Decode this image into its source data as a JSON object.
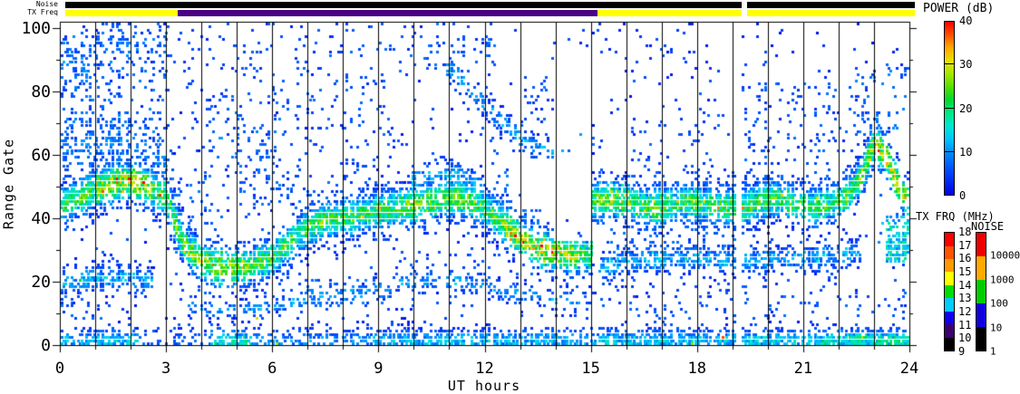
{
  "top_strip": {
    "noise_label": "Noise",
    "tx_freq_label": "TX Freq",
    "noise_segments": [
      {
        "hours": [
          0,
          19.12
        ],
        "color": "#000000"
      },
      {
        "hours": [
          19.27,
          24
        ],
        "color": "#000000"
      }
    ],
    "tx_freq_segments": [
      {
        "hours": [
          0,
          3.17
        ],
        "color": "#ffff00"
      },
      {
        "hours": [
          3.17,
          15.03
        ],
        "color": "#4a0082"
      },
      {
        "hours": [
          15.03,
          19.12
        ],
        "color": "#ffff00"
      },
      {
        "hours": [
          19.27,
          24
        ],
        "color": "#ffff00"
      }
    ]
  },
  "colorbars": {
    "power": {
      "title": "POWER (dB)",
      "tick_labels": [
        "40",
        "30",
        "20",
        "10",
        "0"
      ],
      "tick_values": [
        40,
        30,
        20,
        10,
        0
      ],
      "divider_values": [
        10,
        20,
        30
      ],
      "range": [
        0,
        40
      ]
    },
    "tx_frq": {
      "title": "TX FRQ (MHz)",
      "tick_labels": [
        "18",
        "17",
        "16",
        "15",
        "14",
        "13",
        "12",
        "11",
        "10",
        "9"
      ],
      "segment_colors_bottom_to_top": [
        "#000000",
        "#3d0070",
        "#1100ee",
        "#00ccff",
        "#00dd00",
        "#ffff00",
        "#ff9900",
        "#ff5500",
        "#ff0000"
      ]
    },
    "noise": {
      "title": "NOISE",
      "tick_labels_bottom_to_top": [
        "1",
        "10",
        "100",
        "1000",
        "10000"
      ],
      "segment_colors_bottom_to_top": [
        "#000000",
        "#1100dd",
        "#00cc00",
        "#ffaa00",
        "#ee0000"
      ]
    }
  },
  "chart_data": {
    "type": "heatmap",
    "title": "",
    "xlabel": "UT hours",
    "ylabel": "Range Gate",
    "xlim": [
      0,
      24
    ],
    "ylim": [
      0,
      102
    ],
    "x_major_ticks": [
      "0",
      "3",
      "6",
      "9",
      "12",
      "15",
      "18",
      "21",
      "24"
    ],
    "x_major_tick_values": [
      0,
      3,
      6,
      9,
      12,
      15,
      18,
      21,
      24
    ],
    "x_minor_step": 1,
    "y_major_ticks": [
      "100",
      "80",
      "60",
      "40",
      "20",
      "0"
    ],
    "y_major_tick_values": [
      100,
      80,
      60,
      40,
      20,
      0
    ],
    "y_minor_step": 10,
    "hour_gridline_step": 1,
    "data_gap_hours": [
      [
        19.12,
        19.27
      ]
    ],
    "power_range_db": [
      0,
      40
    ],
    "seed": 1337,
    "colormap_stops": [
      [
        0,
        "#0000e6"
      ],
      [
        6,
        "#0050ff"
      ],
      [
        10,
        "#0090ff"
      ],
      [
        13,
        "#00c8ff"
      ],
      [
        16,
        "#00e8d0"
      ],
      [
        19,
        "#00e880"
      ],
      [
        22,
        "#00d830"
      ],
      [
        25,
        "#58e000"
      ],
      [
        28,
        "#a8e800"
      ],
      [
        31,
        "#e8e000"
      ],
      [
        34,
        "#ffa800"
      ],
      [
        37,
        "#ff5000"
      ],
      [
        40,
        "#ff0000"
      ]
    ],
    "bands": [
      {
        "name": "main-echo-band",
        "sigma": 4.2,
        "density": 0.8,
        "peak": 24,
        "path": [
          [
            0,
            44
          ],
          [
            0.5,
            46
          ],
          [
            1,
            49
          ],
          [
            1.6,
            51
          ],
          [
            2.1,
            51
          ],
          [
            2.6,
            49
          ],
          [
            3.0,
            46
          ],
          [
            3.2,
            40
          ],
          [
            3.5,
            31
          ],
          [
            4,
            26
          ],
          [
            4.6,
            24
          ],
          [
            5.2,
            24
          ],
          [
            5.8,
            26
          ],
          [
            6.3,
            30
          ],
          [
            6.9,
            36
          ],
          [
            7.5,
            39
          ],
          [
            8.2,
            40
          ],
          [
            9,
            42
          ],
          [
            9.6,
            43
          ],
          [
            10.2,
            44
          ],
          [
            10.8,
            46
          ],
          [
            11.3,
            46
          ],
          [
            11.8,
            44
          ],
          [
            12.2,
            41
          ],
          [
            12.6,
            37
          ],
          [
            13,
            33
          ],
          [
            13.5,
            30
          ],
          [
            14,
            29
          ],
          [
            14.5,
            28
          ],
          [
            15.0,
            28
          ],
          [
            15.05,
            45
          ],
          [
            15.5,
            46
          ],
          [
            16,
            45
          ],
          [
            16.5,
            43
          ],
          [
            17,
            43
          ],
          [
            17.6,
            45
          ],
          [
            18.2,
            44
          ],
          [
            18.7,
            43
          ],
          [
            19.1,
            43
          ],
          [
            19.3,
            43
          ],
          [
            19.8,
            45
          ],
          [
            20.3,
            46
          ],
          [
            20.8,
            44
          ],
          [
            21.3,
            43
          ],
          [
            21.8,
            44
          ],
          [
            22.2,
            46
          ],
          [
            22.6,
            52
          ],
          [
            23.0,
            63
          ],
          [
            23.3,
            60
          ],
          [
            23.6,
            52
          ],
          [
            24,
            44
          ]
        ],
        "hot": [
          {
            "hours": [
              1.0,
              2.6
            ],
            "peak": 31
          },
          {
            "hours": [
              3.5,
              5.3
            ],
            "peak": 29
          },
          {
            "hours": [
              9.8,
              11.8
            ],
            "peak": 27
          },
          {
            "hours": [
              12.6,
              14.6
            ],
            "peak": 31
          },
          {
            "hours": [
              15.05,
              16.2
            ],
            "peak": 27
          },
          {
            "hours": [
              22.6,
              24
            ],
            "peak": 30
          }
        ]
      },
      {
        "name": "near-band-early",
        "sigma": 2.8,
        "density": 0.55,
        "peak": 13,
        "path": [
          [
            0,
            19
          ],
          [
            0.6,
            20
          ],
          [
            1.2,
            21
          ],
          [
            2,
            21
          ],
          [
            2.6,
            19
          ]
        ],
        "hot": []
      },
      {
        "name": "near-band-morning",
        "sigma": 2.2,
        "density": 0.3,
        "peak": 11,
        "path": [
          [
            3.6,
            12
          ],
          [
            4.5,
            11
          ],
          [
            5.5,
            11
          ],
          [
            6.5,
            13
          ],
          [
            7.5,
            15
          ],
          [
            8.5,
            16
          ],
          [
            9.4,
            17
          ]
        ],
        "hot": []
      },
      {
        "name": "near-band-midday",
        "sigma": 2.2,
        "density": 0.3,
        "peak": 11,
        "path": [
          [
            9.4,
            19
          ],
          [
            10.3,
            20
          ],
          [
            11.2,
            20
          ],
          [
            12,
            18
          ],
          [
            13,
            16
          ],
          [
            14,
            14
          ],
          [
            14.9,
            13
          ]
        ],
        "hot": []
      },
      {
        "name": "near-band-evening",
        "sigma": 2.8,
        "density": 0.5,
        "peak": 13,
        "path": [
          [
            15.2,
            24
          ],
          [
            16,
            26
          ],
          [
            17,
            27
          ],
          [
            18,
            27
          ],
          [
            19.1,
            26
          ],
          [
            19.3,
            26
          ],
          [
            20,
            27
          ],
          [
            21,
            27
          ],
          [
            22,
            28
          ],
          [
            22.7,
            29
          ],
          [
            23.3,
            31
          ],
          [
            24,
            31
          ]
        ],
        "hot": []
      },
      {
        "name": "upper-descending-streak",
        "sigma": 2.6,
        "density": 0.4,
        "peak": 12,
        "path": [
          [
            10.9,
            88
          ],
          [
            11.6,
            80
          ],
          [
            12.3,
            72
          ],
          [
            13,
            65
          ],
          [
            13.6,
            61
          ],
          [
            14.2,
            62
          ],
          [
            14.8,
            66
          ],
          [
            15.2,
            63
          ]
        ],
        "hot": []
      },
      {
        "name": "early-upper-shoulder",
        "sigma": 4.5,
        "density": 0.22,
        "peak": 9,
        "path": [
          [
            0,
            61
          ],
          [
            0.8,
            63
          ],
          [
            1.6,
            65
          ],
          [
            2.4,
            62
          ],
          [
            3,
            57
          ]
        ],
        "hot": []
      },
      {
        "name": "topleft-patch",
        "sigma": 4,
        "density": 0.3,
        "peak": 9,
        "path": [
          [
            0,
            88
          ],
          [
            0.4,
            90
          ],
          [
            0.9,
            86
          ]
        ],
        "hot": []
      },
      {
        "name": "mid-left-scatter-arc",
        "sigma": 5,
        "density": 0.12,
        "peak": 8,
        "path": [
          [
            4.2,
            66
          ],
          [
            5,
            61
          ],
          [
            5.8,
            57
          ],
          [
            6.3,
            54
          ]
        ],
        "hot": []
      },
      {
        "name": "late-morning-upper-ext",
        "sigma": 2.8,
        "density": 0.35,
        "peak": 13,
        "path": [
          [
            9.9,
            51
          ],
          [
            10.6,
            54
          ],
          [
            11.3,
            53
          ],
          [
            11.9,
            50
          ]
        ],
        "hot": []
      }
    ],
    "scatter_regions": [
      {
        "hours": [
          0,
          3.2
        ],
        "gates": [
          52,
          97
        ],
        "density": 0.09,
        "power": [
          2,
          10
        ]
      },
      {
        "hours": [
          0.6,
          3.1
        ],
        "gates": [
          92,
          102
        ],
        "density": 0.13,
        "power": [
          2,
          9
        ]
      },
      {
        "hours": [
          3.1,
          4.3
        ],
        "gates": [
          28,
          52
        ],
        "density": 0.07,
        "power": [
          2,
          9
        ]
      },
      {
        "hours": [
          4.0,
          6.4
        ],
        "gates": [
          40,
          80
        ],
        "density": 0.05,
        "power": [
          1,
          9
        ]
      },
      {
        "hours": [
          6.4,
          9.4
        ],
        "gates": [
          40,
          102
        ],
        "density": 0.035,
        "power": [
          1,
          8
        ]
      },
      {
        "hours": [
          9.4,
          12.3
        ],
        "gates": [
          86,
          102
        ],
        "density": 0.07,
        "power": [
          2,
          9
        ]
      },
      {
        "hours": [
          12.2,
          13.7
        ],
        "gates": [
          38,
          54
        ],
        "density": 0.08,
        "power": [
          2,
          10
        ]
      },
      {
        "hours": [
          13.1,
          14.1
        ],
        "gates": [
          71,
          84
        ],
        "density": 0.1,
        "power": [
          2,
          9
        ]
      },
      {
        "hours": [
          15.1,
          19.1
        ],
        "gates": [
          29,
          41
        ],
        "density": 0.05,
        "power": [
          1,
          9
        ]
      },
      {
        "hours": [
          16,
          19.1
        ],
        "gates": [
          48,
          72
        ],
        "density": 0.035,
        "power": [
          1,
          8
        ]
      },
      {
        "hours": [
          19.3,
          22.4
        ],
        "gates": [
          46,
          82
        ],
        "density": 0.045,
        "power": [
          1,
          8
        ]
      },
      {
        "hours": [
          22.4,
          24
        ],
        "gates": [
          66,
          88
        ],
        "density": 0.09,
        "power": [
          2,
          10
        ]
      },
      {
        "hours": [
          15.1,
          24
        ],
        "gates": [
          8,
          20
        ],
        "density": 0.045,
        "power": [
          1,
          8
        ]
      },
      {
        "hours": [
          9.4,
          12.3
        ],
        "gates": [
          20,
          30
        ],
        "density": 0.05,
        "power": [
          1,
          8
        ]
      },
      {
        "hours": [
          23.2,
          24
        ],
        "gates": [
          26,
          40
        ],
        "density": 0.35,
        "power": [
          8,
          20
        ]
      },
      {
        "hours": [
          6.8,
          9.4
        ],
        "gates": [
          12,
          20
        ],
        "density": 0.07,
        "power": [
          2,
          10
        ]
      },
      {
        "hours": [
          0,
          1.2
        ],
        "gates": [
          8,
          15
        ],
        "density": 0.12,
        "power": [
          2,
          9
        ]
      },
      {
        "hours": [
          3.2,
          6.4
        ],
        "gates": [
          80,
          102
        ],
        "density": 0.03,
        "power": [
          1,
          7
        ]
      }
    ],
    "holes": [
      {
        "hours": [
          13.95,
          15.02
        ],
        "gates": [
          33,
          92
        ]
      },
      {
        "hours": [
          12.75,
          13.95
        ],
        "gates": [
          43,
          58
        ]
      },
      {
        "hours": [
          22.62,
          23.35
        ],
        "gates": [
          16,
          46
        ]
      }
    ],
    "baseline_scatter": {
      "density": 0.022,
      "power": [
        1,
        7
      ]
    },
    "bottom_band": {
      "gates": [
        0,
        8
      ],
      "segments": [
        {
          "hours": [
            0,
            1.05
          ],
          "density": 0.5,
          "peak": 15,
          "fleck": 0.004
        },
        {
          "hours": [
            1.05,
            2.3
          ],
          "density": 0.55,
          "peak": 16,
          "fleck": 0.004
        },
        {
          "hours": [
            2.3,
            4.25
          ],
          "density": 0.15,
          "peak": 9,
          "fleck": 0.002
        },
        {
          "hours": [
            4.25,
            5.4
          ],
          "density": 0.6,
          "peak": 19,
          "fleck": 0.008
        },
        {
          "hours": [
            5.4,
            8.8
          ],
          "density": 0.28,
          "peak": 12,
          "fleck": 0.004
        },
        {
          "hours": [
            8.8,
            12
          ],
          "density": 0.5,
          "peak": 15,
          "fleck": 0.01
        },
        {
          "hours": [
            12,
            15.03
          ],
          "density": 0.45,
          "peak": 15,
          "fleck": 0.012
        },
        {
          "hours": [
            15.03,
            19.12
          ],
          "density": 0.55,
          "peak": 16,
          "fleck": 0.015
        },
        {
          "hours": [
            19.27,
            21.5
          ],
          "density": 0.55,
          "peak": 16,
          "fleck": 0.015
        },
        {
          "hours": [
            21.5,
            24
          ],
          "density": 0.8,
          "peak": 21,
          "fleck": 0.02
        }
      ]
    }
  }
}
